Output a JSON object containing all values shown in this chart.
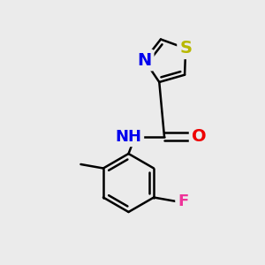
{
  "background_color": "#ebebeb",
  "atom_colors": {
    "S": "#b8b800",
    "N": "#0000ee",
    "O": "#ee0000",
    "F": "#ee3399",
    "C": "#000000",
    "H": "#000000"
  },
  "bond_color": "#000000",
  "bond_width": 1.8,
  "font_size": 13,
  "figsize": [
    3.0,
    3.0
  ],
  "dpi": 100
}
